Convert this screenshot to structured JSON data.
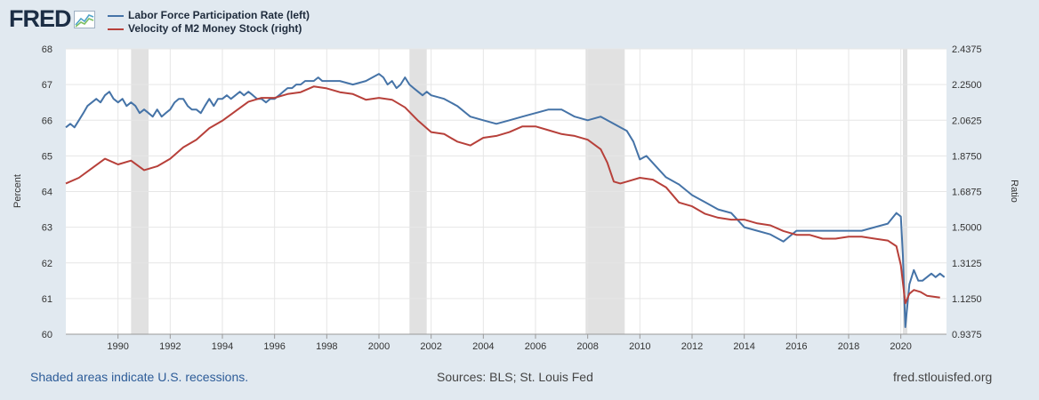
{
  "logo": {
    "text": "FRED"
  },
  "footer": {
    "note": "Shaded areas indicate U.S. recessions.",
    "sources": "Sources: BLS; St. Louis Fed",
    "site": "fred.stlouisfed.org"
  },
  "colors": {
    "lfpr": "#4573a7",
    "velocity": "#b7403a",
    "recession": "#e1e1e1",
    "background": "#e1e9f0"
  },
  "chart_data": {
    "type": "line",
    "title": "",
    "xlabel": "",
    "ylabel_left": "Percent",
    "ylabel_right": "Ratio",
    "xlim": [
      1988.0,
      2021.75
    ],
    "ylim_left": [
      60,
      68
    ],
    "ylim_right": [
      0.9375,
      2.4375
    ],
    "x_ticks": [
      1990,
      1992,
      1994,
      1996,
      1998,
      2000,
      2002,
      2004,
      2006,
      2008,
      2010,
      2012,
      2014,
      2016,
      2018,
      2020
    ],
    "y_ticks_left": [
      "60",
      "61",
      "62",
      "63",
      "64",
      "65",
      "66",
      "67",
      "68"
    ],
    "y_ticks_right": [
      "0.9375",
      "1.1250",
      "1.3125",
      "1.5000",
      "1.6875",
      "1.8750",
      "2.0625",
      "2.2500",
      "2.4375"
    ],
    "grid": true,
    "legend_position": "top-left",
    "recessions": [
      [
        1990.5,
        1991.17
      ],
      [
        2001.17,
        2001.83
      ],
      [
        2007.92,
        2009.42
      ],
      [
        2020.08,
        2020.25
      ]
    ],
    "series": [
      {
        "name": "Labor Force Participation Rate (left)",
        "axis": "left",
        "color": "#4573a7",
        "x": [
          1988.0,
          1988.17,
          1988.33,
          1988.5,
          1988.67,
          1988.83,
          1989.0,
          1989.17,
          1989.33,
          1989.5,
          1989.67,
          1989.83,
          1990.0,
          1990.17,
          1990.33,
          1990.5,
          1990.67,
          1990.83,
          1991.0,
          1991.17,
          1991.33,
          1991.5,
          1991.67,
          1991.83,
          1992.0,
          1992.17,
          1992.33,
          1992.5,
          1992.67,
          1992.83,
          1993.0,
          1993.17,
          1993.33,
          1993.5,
          1993.67,
          1993.83,
          1994.0,
          1994.17,
          1994.33,
          1994.5,
          1994.67,
          1994.83,
          1995.0,
          1995.17,
          1995.33,
          1995.5,
          1995.67,
          1995.83,
          1996.0,
          1996.17,
          1996.33,
          1996.5,
          1996.67,
          1996.83,
          1997.0,
          1997.17,
          1997.33,
          1997.5,
          1997.67,
          1997.83,
          1998.0,
          1998.5,
          1999.0,
          1999.5,
          2000.0,
          2000.17,
          2000.33,
          2000.5,
          2000.67,
          2000.83,
          2001.0,
          2001.17,
          2001.33,
          2001.5,
          2001.67,
          2001.83,
          2002.0,
          2002.5,
          2003.0,
          2003.5,
          2004.0,
          2004.5,
          2005.0,
          2005.5,
          2006.0,
          2006.5,
          2007.0,
          2007.5,
          2008.0,
          2008.5,
          2009.0,
          2009.25,
          2009.5,
          2009.75,
          2010.0,
          2010.25,
          2010.5,
          2010.75,
          2011.0,
          2011.5,
          2012.0,
          2012.5,
          2013.0,
          2013.5,
          2014.0,
          2014.5,
          2015.0,
          2015.5,
          2016.0,
          2016.5,
          2017.0,
          2017.5,
          2018.0,
          2018.5,
          2019.0,
          2019.5,
          2019.83,
          2020.0,
          2020.08,
          2020.17,
          2020.25,
          2020.33,
          2020.5,
          2020.67,
          2020.83,
          2021.0,
          2021.17,
          2021.33,
          2021.5,
          2021.67
        ],
        "values": [
          65.8,
          65.9,
          65.8,
          66.0,
          66.2,
          66.4,
          66.5,
          66.6,
          66.5,
          66.7,
          66.8,
          66.6,
          66.5,
          66.6,
          66.4,
          66.5,
          66.4,
          66.2,
          66.3,
          66.2,
          66.1,
          66.3,
          66.1,
          66.2,
          66.3,
          66.5,
          66.6,
          66.6,
          66.4,
          66.3,
          66.3,
          66.2,
          66.4,
          66.6,
          66.4,
          66.6,
          66.6,
          66.7,
          66.6,
          66.7,
          66.8,
          66.7,
          66.8,
          66.7,
          66.6,
          66.6,
          66.5,
          66.6,
          66.6,
          66.7,
          66.8,
          66.9,
          66.9,
          67.0,
          67.0,
          67.1,
          67.1,
          67.1,
          67.2,
          67.1,
          67.1,
          67.1,
          67.0,
          67.1,
          67.3,
          67.2,
          67.0,
          67.1,
          66.9,
          67.0,
          67.2,
          67.0,
          66.9,
          66.8,
          66.7,
          66.8,
          66.7,
          66.6,
          66.4,
          66.1,
          66.0,
          65.9,
          66.0,
          66.1,
          66.2,
          66.3,
          66.3,
          66.1,
          66.0,
          66.1,
          65.9,
          65.8,
          65.7,
          65.4,
          64.9,
          65.0,
          64.8,
          64.6,
          64.4,
          64.2,
          63.9,
          63.7,
          63.5,
          63.4,
          63.0,
          62.9,
          62.8,
          62.6,
          62.9,
          62.9,
          62.9,
          62.9,
          62.9,
          62.9,
          63.0,
          63.1,
          63.4,
          63.3,
          62.2,
          60.2,
          60.8,
          61.4,
          61.8,
          61.5,
          61.5,
          61.6,
          61.7,
          61.6,
          61.7,
          61.6
        ],
        "value_mask": null
      },
      {
        "name": "Velocity of M2 Money Stock (right)",
        "axis": "right",
        "color": "#b7403a",
        "x": [
          1988.0,
          1988.5,
          1989.0,
          1989.5,
          1990.0,
          1990.5,
          1991.0,
          1991.5,
          1992.0,
          1992.5,
          1993.0,
          1993.5,
          1994.0,
          1994.5,
          1995.0,
          1995.5,
          1996.0,
          1996.5,
          1997.0,
          1997.5,
          1998.0,
          1998.5,
          1999.0,
          1999.5,
          2000.0,
          2000.5,
          2001.0,
          2001.5,
          2002.0,
          2002.5,
          2003.0,
          2003.5,
          2004.0,
          2004.5,
          2005.0,
          2005.5,
          2006.0,
          2006.5,
          2007.0,
          2007.5,
          2008.0,
          2008.5,
          2008.75,
          2009.0,
          2009.25,
          2009.5,
          2010.0,
          2010.5,
          2011.0,
          2011.5,
          2012.0,
          2012.5,
          2013.0,
          2013.5,
          2014.0,
          2014.5,
          2015.0,
          2015.5,
          2016.0,
          2016.5,
          2017.0,
          2017.5,
          2018.0,
          2018.5,
          2019.0,
          2019.5,
          2019.83,
          2020.0,
          2020.17,
          2020.33,
          2020.5,
          2020.75,
          2021.0,
          2021.5
        ],
        "values": [
          1.73,
          1.76,
          1.81,
          1.86,
          1.83,
          1.85,
          1.8,
          1.82,
          1.86,
          1.92,
          1.96,
          2.02,
          2.06,
          2.11,
          2.16,
          2.18,
          2.18,
          2.2,
          2.21,
          2.24,
          2.23,
          2.21,
          2.2,
          2.17,
          2.18,
          2.17,
          2.13,
          2.06,
          2.0,
          1.99,
          1.95,
          1.93,
          1.97,
          1.98,
          2.0,
          2.03,
          2.03,
          2.01,
          1.99,
          1.98,
          1.96,
          1.91,
          1.84,
          1.74,
          1.73,
          1.74,
          1.76,
          1.75,
          1.71,
          1.63,
          1.61,
          1.57,
          1.55,
          1.54,
          1.54,
          1.52,
          1.51,
          1.48,
          1.46,
          1.46,
          1.44,
          1.44,
          1.45,
          1.45,
          1.44,
          1.43,
          1.4,
          1.3,
          1.1,
          1.15,
          1.17,
          1.16,
          1.14,
          1.13
        ]
      }
    ]
  }
}
